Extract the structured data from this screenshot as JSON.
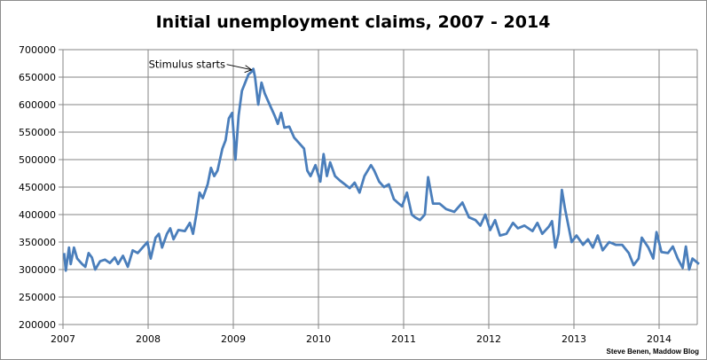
{
  "chart_data": {
    "type": "line",
    "title": "Initial unemployment claims, 2007 - 2014",
    "xlabel": "",
    "ylabel": "",
    "ylim": [
      200000,
      700000
    ],
    "yticks": [
      "200000",
      "250000",
      "300000",
      "350000",
      "400000",
      "450000",
      "500000",
      "550000",
      "600000",
      "650000",
      "700000"
    ],
    "xticks": [
      "2007",
      "2008",
      "2009",
      "2010",
      "2011",
      "2012",
      "2013",
      "2014"
    ],
    "grid": true,
    "line_color": "#4a7ebb",
    "annotation": {
      "text": "Stimulus starts",
      "date": "2009-03-28",
      "value": 665000
    },
    "credit": "Steve Benen, Maddow Blog",
    "series": [
      {
        "points": [
          [
            "2007-01-06",
            330000
          ],
          [
            "2007-01-13",
            298000
          ],
          [
            "2007-01-27",
            340000
          ],
          [
            "2007-02-03",
            310000
          ],
          [
            "2007-02-17",
            340000
          ],
          [
            "2007-03-03",
            320000
          ],
          [
            "2007-03-24",
            310000
          ],
          [
            "2007-04-07",
            305000
          ],
          [
            "2007-04-21",
            330000
          ],
          [
            "2007-05-05",
            322000
          ],
          [
            "2007-05-19",
            300000
          ],
          [
            "2007-06-09",
            315000
          ],
          [
            "2007-06-30",
            318000
          ],
          [
            "2007-07-21",
            312000
          ],
          [
            "2007-08-11",
            322000
          ],
          [
            "2007-08-25",
            310000
          ],
          [
            "2007-09-15",
            325000
          ],
          [
            "2007-10-06",
            305000
          ],
          [
            "2007-10-27",
            335000
          ],
          [
            "2007-11-17",
            330000
          ],
          [
            "2007-12-08",
            340000
          ],
          [
            "2007-12-29",
            350000
          ],
          [
            "2008-01-12",
            320000
          ],
          [
            "2008-02-02",
            358000
          ],
          [
            "2008-02-16",
            365000
          ],
          [
            "2008-03-01",
            340000
          ],
          [
            "2008-03-22",
            365000
          ],
          [
            "2008-04-05",
            375000
          ],
          [
            "2008-04-19",
            355000
          ],
          [
            "2008-05-10",
            372000
          ],
          [
            "2008-06-07",
            370000
          ],
          [
            "2008-06-28",
            385000
          ],
          [
            "2008-07-12",
            365000
          ],
          [
            "2008-07-26",
            400000
          ],
          [
            "2008-08-09",
            440000
          ],
          [
            "2008-08-23",
            430000
          ],
          [
            "2008-09-13",
            455000
          ],
          [
            "2008-09-27",
            485000
          ],
          [
            "2008-10-11",
            470000
          ],
          [
            "2008-10-25",
            480000
          ],
          [
            "2008-11-15",
            520000
          ],
          [
            "2008-11-29",
            535000
          ],
          [
            "2008-12-13",
            575000
          ],
          [
            "2008-12-27",
            585000
          ],
          [
            "2009-01-10",
            500000
          ],
          [
            "2009-01-24",
            580000
          ],
          [
            "2009-02-07",
            625000
          ],
          [
            "2009-02-21",
            640000
          ],
          [
            "2009-03-07",
            655000
          ],
          [
            "2009-03-21",
            660000
          ],
          [
            "2009-03-28",
            665000
          ],
          [
            "2009-04-04",
            650000
          ],
          [
            "2009-04-18",
            600000
          ],
          [
            "2009-05-02",
            640000
          ],
          [
            "2009-05-16",
            620000
          ],
          [
            "2009-06-06",
            600000
          ],
          [
            "2009-06-27",
            580000
          ],
          [
            "2009-07-11",
            565000
          ],
          [
            "2009-07-25",
            585000
          ],
          [
            "2009-08-08",
            558000
          ],
          [
            "2009-08-29",
            560000
          ],
          [
            "2009-09-19",
            540000
          ],
          [
            "2009-10-10",
            530000
          ],
          [
            "2009-10-31",
            520000
          ],
          [
            "2009-11-14",
            480000
          ],
          [
            "2009-11-28",
            470000
          ],
          [
            "2009-12-19",
            490000
          ],
          [
            "2010-01-09",
            460000
          ],
          [
            "2010-01-23",
            510000
          ],
          [
            "2010-02-06",
            470000
          ],
          [
            "2010-02-20",
            495000
          ],
          [
            "2010-03-13",
            470000
          ],
          [
            "2010-04-03",
            462000
          ],
          [
            "2010-04-24",
            455000
          ],
          [
            "2010-05-15",
            448000
          ],
          [
            "2010-06-05",
            458000
          ],
          [
            "2010-06-26",
            440000
          ],
          [
            "2010-07-17",
            470000
          ],
          [
            "2010-08-14",
            490000
          ],
          [
            "2010-08-28",
            480000
          ],
          [
            "2010-09-18",
            460000
          ],
          [
            "2010-10-09",
            450000
          ],
          [
            "2010-10-30",
            455000
          ],
          [
            "2010-11-20",
            428000
          ],
          [
            "2010-12-11",
            420000
          ],
          [
            "2010-12-25",
            415000
          ],
          [
            "2011-01-15",
            440000
          ],
          [
            "2011-02-05",
            400000
          ],
          [
            "2011-02-19",
            395000
          ],
          [
            "2011-03-12",
            390000
          ],
          [
            "2011-04-02",
            400000
          ],
          [
            "2011-04-16",
            468000
          ],
          [
            "2011-05-07",
            420000
          ],
          [
            "2011-06-04",
            420000
          ],
          [
            "2011-07-02",
            410000
          ],
          [
            "2011-08-06",
            405000
          ],
          [
            "2011-09-10",
            422000
          ],
          [
            "2011-10-08",
            395000
          ],
          [
            "2011-11-05",
            390000
          ],
          [
            "2011-11-26",
            380000
          ],
          [
            "2011-12-17",
            400000
          ],
          [
            "2012-01-07",
            372000
          ],
          [
            "2012-01-28",
            390000
          ],
          [
            "2012-02-18",
            362000
          ],
          [
            "2012-03-17",
            365000
          ],
          [
            "2012-04-14",
            385000
          ],
          [
            "2012-05-05",
            375000
          ],
          [
            "2012-06-02",
            380000
          ],
          [
            "2012-07-07",
            370000
          ],
          [
            "2012-07-28",
            385000
          ],
          [
            "2012-08-18",
            365000
          ],
          [
            "2012-09-15",
            378000
          ],
          [
            "2012-09-29",
            388000
          ],
          [
            "2012-10-13",
            340000
          ],
          [
            "2012-10-27",
            365000
          ],
          [
            "2012-11-10",
            445000
          ],
          [
            "2012-11-24",
            410000
          ],
          [
            "2012-12-08",
            380000
          ],
          [
            "2012-12-22",
            350000
          ],
          [
            "2013-01-12",
            362000
          ],
          [
            "2013-02-09",
            345000
          ],
          [
            "2013-03-02",
            355000
          ],
          [
            "2013-03-23",
            340000
          ],
          [
            "2013-04-13",
            362000
          ],
          [
            "2013-05-04",
            335000
          ],
          [
            "2013-06-01",
            350000
          ],
          [
            "2013-06-29",
            345000
          ],
          [
            "2013-07-27",
            345000
          ],
          [
            "2013-08-24",
            330000
          ],
          [
            "2013-09-14",
            308000
          ],
          [
            "2013-10-05",
            320000
          ],
          [
            "2013-10-19",
            358000
          ],
          [
            "2013-11-16",
            340000
          ],
          [
            "2013-12-07",
            320000
          ],
          [
            "2013-12-21",
            368000
          ],
          [
            "2014-01-11",
            332000
          ],
          [
            "2014-02-08",
            330000
          ],
          [
            "2014-03-01",
            342000
          ],
          [
            "2014-03-22",
            320000
          ],
          [
            "2014-04-12",
            303000
          ],
          [
            "2014-04-26",
            342000
          ],
          [
            "2014-05-10",
            300000
          ],
          [
            "2014-05-24",
            320000
          ],
          [
            "2014-06-07",
            315000
          ],
          [
            "2014-06-21",
            310000
          ]
        ]
      }
    ]
  }
}
